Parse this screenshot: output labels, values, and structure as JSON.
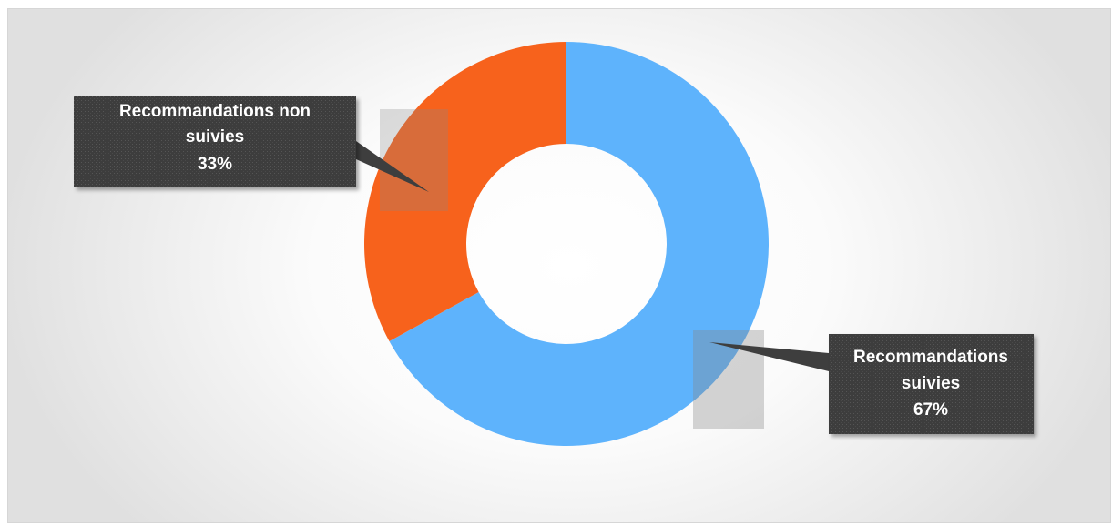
{
  "chart_data": {
    "type": "pie",
    "variant": "donut",
    "title": "",
    "categories": [
      "Recommandations suivies",
      "Recommandations non suivies"
    ],
    "values": [
      67,
      33
    ],
    "value_labels": [
      "67%",
      "33%"
    ],
    "colors": [
      "#5EB3FC",
      "#F7621C"
    ],
    "callouts": [
      {
        "lines": [
          "Recommandations",
          "suivies"
        ],
        "value": "67%"
      },
      {
        "lines": [
          "Recommandations non",
          "suivies"
        ],
        "value": "33%"
      }
    ],
    "legend": "none"
  }
}
